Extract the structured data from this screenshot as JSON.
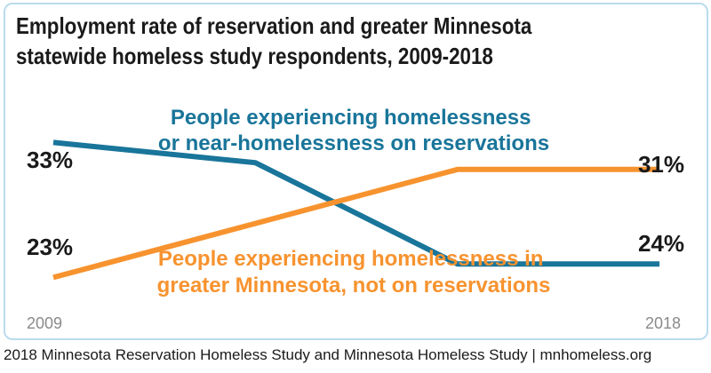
{
  "title": {
    "line1": "Employment rate of reservation and greater Minnesota",
    "line2": "statewide homeless study respondents, 2009-2018"
  },
  "source": "2018 Minnesota Reservation Homeless Study and Minnesota Homeless Study | mnhomeless.org",
  "chart_data": {
    "type": "line",
    "title": "Employment rate of reservation and greater Minnesota statewide homeless study respondents, 2009-2018",
    "x": [
      2009,
      2012,
      2015,
      2018
    ],
    "x_tick_labels": [
      "2009",
      "2018"
    ],
    "ylim": [
      15,
      40
    ],
    "grid": false,
    "series": [
      {
        "name_lines": [
          "People experiencing homelessness",
          "or near-homelessness on reservations"
        ],
        "color": "#19759a",
        "values": [
          33,
          31.5,
          24,
          24
        ],
        "start_label": "33%",
        "end_label": "24%"
      },
      {
        "name_lines": [
          "People experiencing homelessness in",
          "greater Minnesota, not on reservations"
        ],
        "color": "#f7932f",
        "values": [
          23,
          27,
          31,
          31
        ],
        "start_label": "23%",
        "end_label": "31%"
      }
    ]
  }
}
